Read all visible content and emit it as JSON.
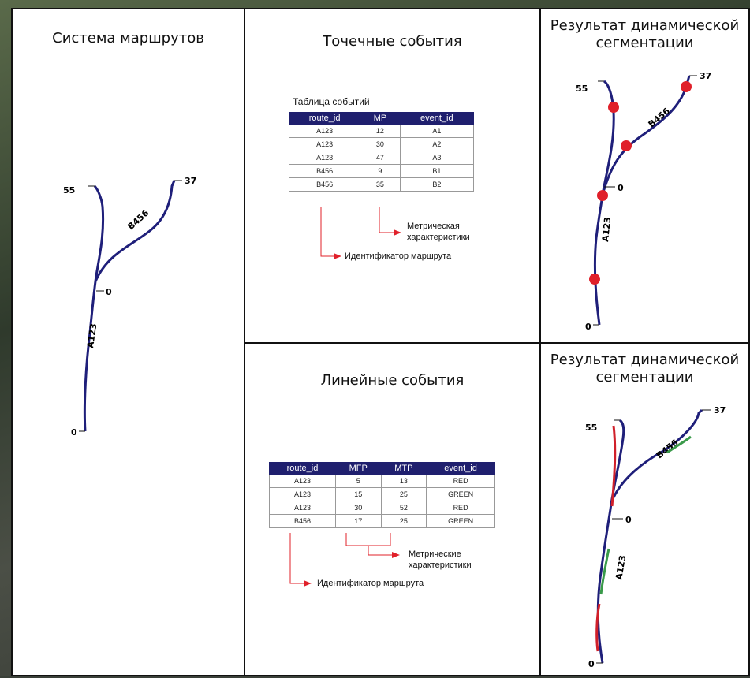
{
  "panels": {
    "routes": {
      "title": "Система маршрутов"
    },
    "point_events": {
      "title": "Точечные события",
      "table_caption": "Таблица событий",
      "columns": [
        "route_id",
        "MP",
        "event_id"
      ],
      "rows": [
        [
          "A123",
          "12",
          "A1"
        ],
        [
          "A123",
          "30",
          "A2"
        ],
        [
          "A123",
          "47",
          "A3"
        ],
        [
          "B456",
          "9",
          "B1"
        ],
        [
          "B456",
          "35",
          "B2"
        ]
      ],
      "measure_label_line1": "Метрическая",
      "measure_label_line2": "характеристики",
      "route_id_label": "Идентификатор маршрута"
    },
    "linear_events": {
      "title": "Линейные события",
      "columns": [
        "route_id",
        "MFP",
        "MTP",
        "event_id"
      ],
      "rows": [
        [
          "A123",
          "5",
          "13",
          "RED"
        ],
        [
          "A123",
          "15",
          "25",
          "GREEN"
        ],
        [
          "A123",
          "30",
          "52",
          "RED"
        ],
        [
          "B456",
          "17",
          "25",
          "GREEN"
        ]
      ],
      "measure_label_line1": "Метрические",
      "measure_label_line2": "характеристики",
      "route_id_label": "Идентификатор маршрута"
    },
    "result_point": {
      "title_line1": "Результат динамической",
      "title_line2": "сегментации"
    },
    "result_linear": {
      "title_line1": "Результат динамической",
      "title_line2": "сегментации"
    }
  },
  "route_labels": {
    "route_a": "A123",
    "route_b": "B456",
    "mark_55": "55",
    "mark_37": "37",
    "mark_0_junction": "0",
    "mark_0_start": "0"
  },
  "colors": {
    "route_line": "#1f1f7a",
    "event_point": "#e0202a",
    "segment_red": "#d0202a",
    "segment_green": "#3a9a4a",
    "table_header": "#1f1f6e",
    "arrow": "#e0202a"
  }
}
